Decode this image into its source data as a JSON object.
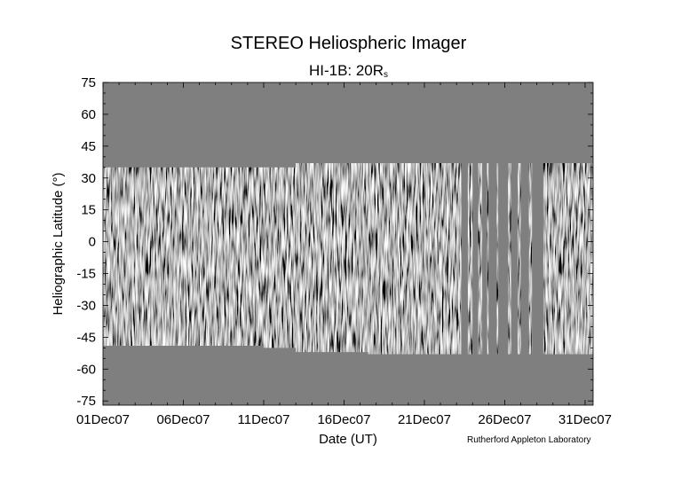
{
  "chart_data": {
    "type": "heatmap",
    "title": "STEREO Heliospheric Imager",
    "subtitle_main": "HI-1B: 20R",
    "subtitle_sub": "s",
    "xlabel": "Date (UT)",
    "ylabel": "Heliographic Latitude (°)",
    "x_ticks": [
      "01Dec07",
      "06Dec07",
      "11Dec07",
      "16Dec07",
      "21Dec07",
      "26Dec07",
      "31Dec07"
    ],
    "x_tick_days": [
      0,
      5,
      10,
      15,
      20,
      25,
      30
    ],
    "xlim_days": [
      0,
      30.5
    ],
    "y_ticks": [
      75,
      60,
      45,
      30,
      15,
      0,
      -15,
      -30,
      -45,
      -60,
      -75
    ],
    "ylim": [
      -77,
      75
    ],
    "background_color": "#7f7f7f",
    "observed_band": [
      {
        "day_start": 0.0,
        "day_end": 10.0,
        "lat_min": -49,
        "lat_max": 35
      },
      {
        "day_start": 10.0,
        "day_end": 12.0,
        "lat_min": -50,
        "lat_max": 35
      },
      {
        "day_start": 12.0,
        "day_end": 16.5,
        "lat_min": -52,
        "lat_max": 37
      },
      {
        "day_start": 16.5,
        "day_end": 30.5,
        "lat_min": -53,
        "lat_max": 37
      }
    ],
    "data_gaps_days": [
      [
        22.3,
        22.7
      ],
      [
        23.0,
        23.35
      ],
      [
        23.6,
        23.9
      ],
      [
        24.0,
        24.5
      ],
      [
        24.6,
        25.2
      ],
      [
        25.4,
        25.8
      ],
      [
        26.0,
        26.5
      ],
      [
        26.7,
        27.4
      ]
    ]
  },
  "credit": "Rutherford Appleton Laboratory"
}
